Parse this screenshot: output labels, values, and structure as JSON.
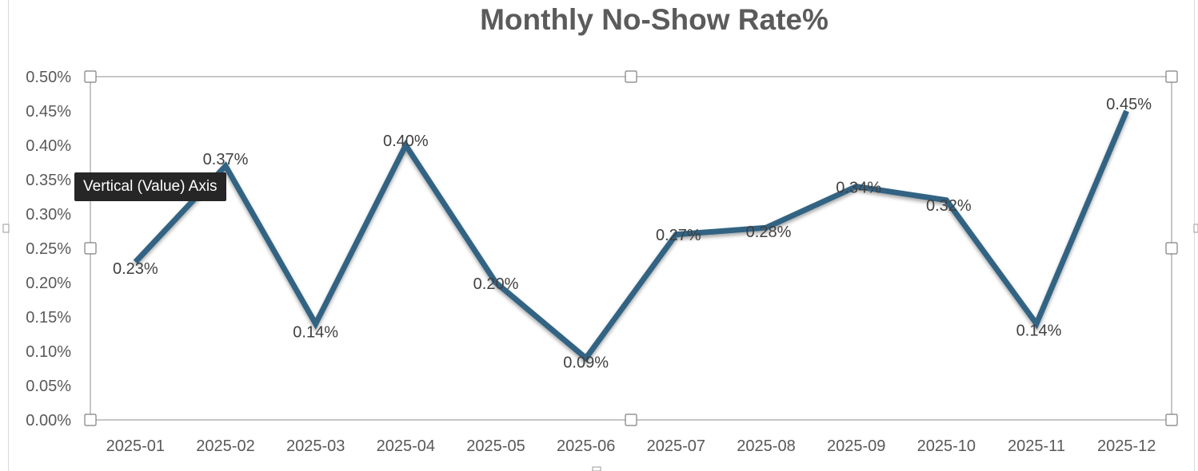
{
  "chart_data": {
    "type": "line",
    "title": "Monthly No-Show Rate%",
    "categories": [
      "2025-01",
      "2025-02",
      "2025-03",
      "2025-04",
      "2025-05",
      "2025-06",
      "2025-07",
      "2025-08",
      "2025-09",
      "2025-10",
      "2025-11",
      "2025-12"
    ],
    "series": [
      {
        "values": [
          0.23,
          0.37,
          0.14,
          0.4,
          0.2,
          0.09,
          0.27,
          0.28,
          0.34,
          0.32,
          0.14,
          0.45
        ],
        "data_labels": [
          "0.23%",
          "0.37%",
          "0.14%",
          "0.40%",
          "0.20%",
          "0.09%",
          "0.27%",
          "0.28%",
          "0.34%",
          "0.32%",
          "0.14%",
          "0.45%"
        ],
        "color": "#336483"
      }
    ],
    "y_ticks": [
      "0.00%",
      "0.05%",
      "0.10%",
      "0.15%",
      "0.20%",
      "0.25%",
      "0.30%",
      "0.35%",
      "0.40%",
      "0.45%",
      "0.50%"
    ],
    "ylim": [
      0,
      0.5
    ],
    "xlabel": "",
    "ylabel": "",
    "grid": false,
    "legend": "none"
  },
  "ui": {
    "tooltip": "Vertical (Value) Axis"
  }
}
